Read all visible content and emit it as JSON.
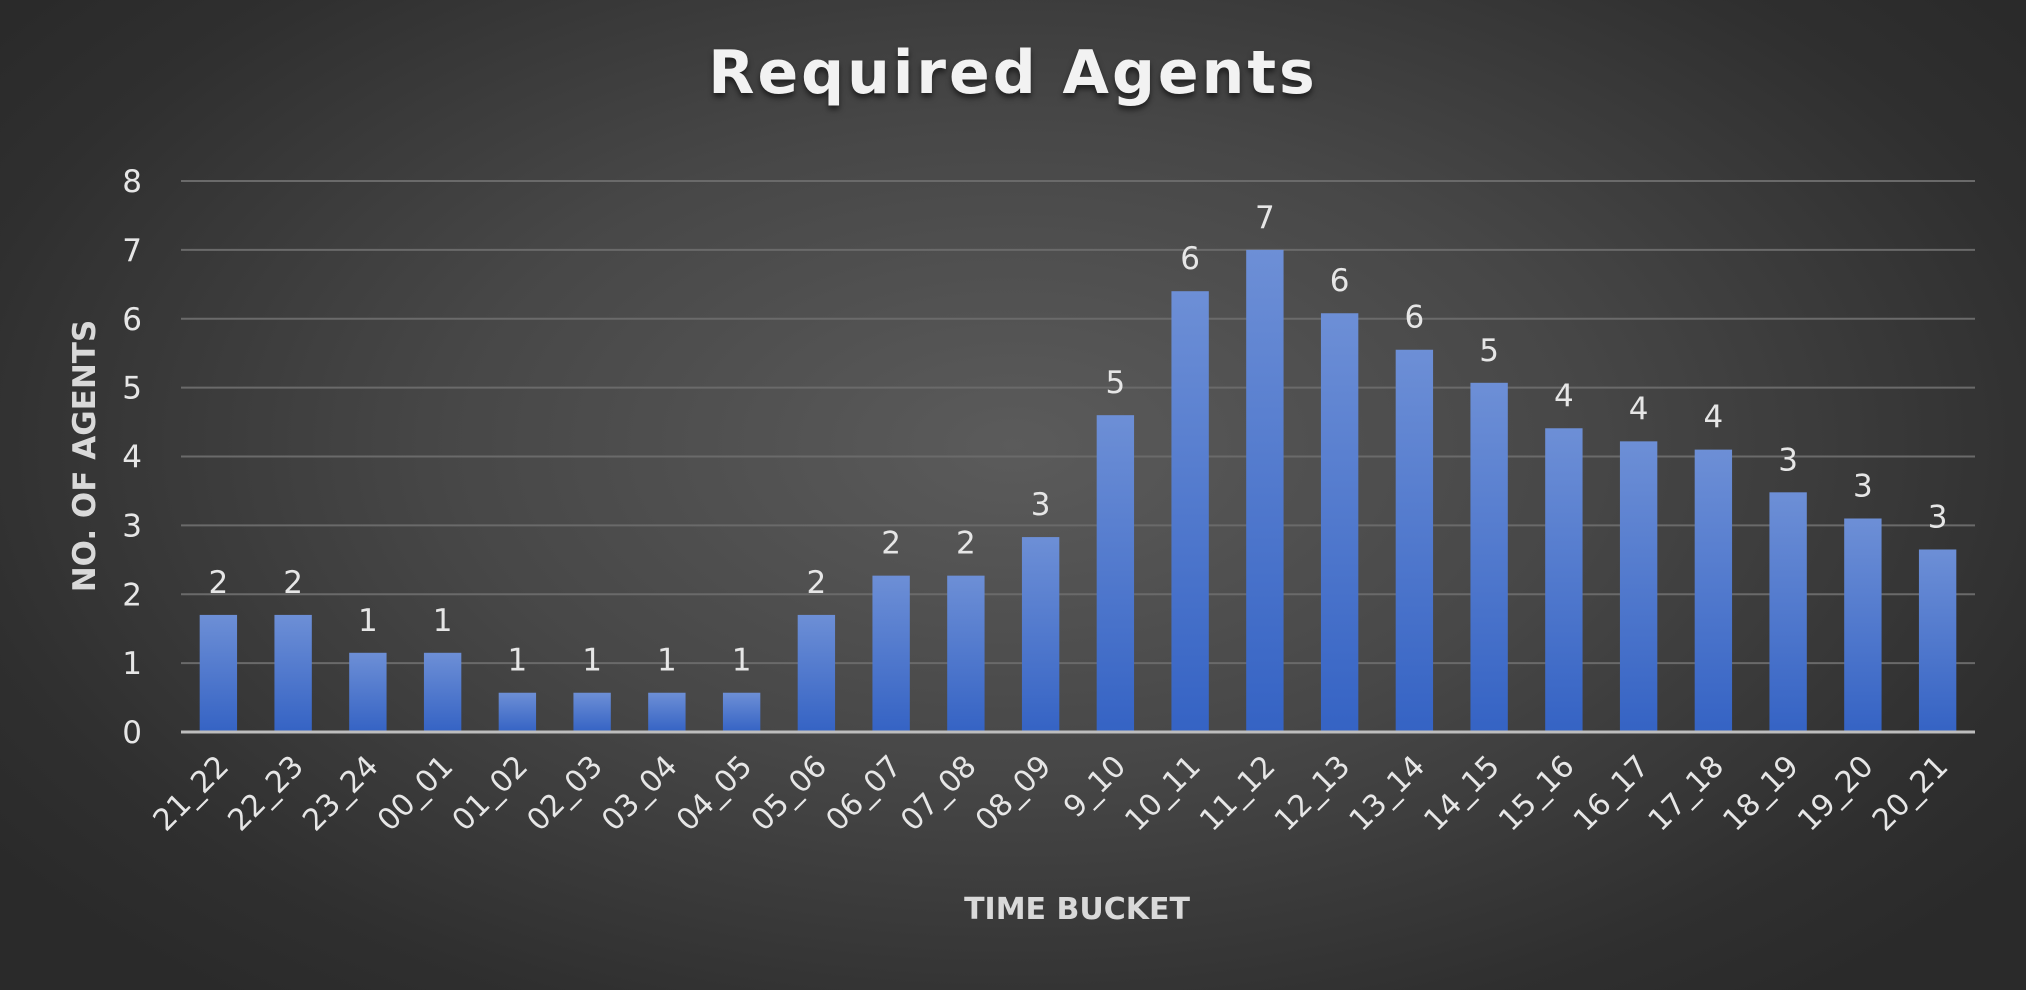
{
  "chart_data": {
    "type": "bar",
    "title": "Required Agents",
    "xlabel": "TIME BUCKET",
    "ylabel": "NO. OF AGENTS",
    "ylim": [
      0,
      8
    ],
    "yticks": [
      0,
      1,
      2,
      3,
      4,
      5,
      6,
      7,
      8
    ],
    "grid": true,
    "legend": "none",
    "categories": [
      "21_22",
      "22_23",
      "23_24",
      "00_01",
      "01_02",
      "02_03",
      "03_04",
      "04_05",
      "05_06",
      "06_07",
      "07_08",
      "08_09",
      "9_10",
      "10_11",
      "11_12",
      "12_13",
      "13_14",
      "14_15",
      "15_16",
      "16_17",
      "17_18",
      "18_19",
      "19_20",
      "20_21"
    ],
    "values": [
      1.7,
      1.7,
      1.15,
      1.15,
      0.57,
      0.57,
      0.57,
      0.57,
      1.7,
      2.27,
      2.27,
      2.83,
      4.6,
      6.4,
      7.0,
      6.08,
      5.55,
      5.07,
      4.41,
      4.22,
      4.1,
      3.48,
      3.1,
      2.65
    ],
    "data_labels": [
      "2",
      "2",
      "1",
      "1",
      "1",
      "1",
      "1",
      "1",
      "2",
      "2",
      "2",
      "3",
      "5",
      "6",
      "7",
      "6",
      "6",
      "5",
      "4",
      "4",
      "4",
      "3",
      "3",
      "3"
    ],
    "colors": {
      "bar_top": "#6d8fd6",
      "bar_bottom": "#3563c4",
      "text": "#e6e6e6",
      "gridline": "#6a6a6a",
      "axis": "#bdbdbd"
    }
  }
}
